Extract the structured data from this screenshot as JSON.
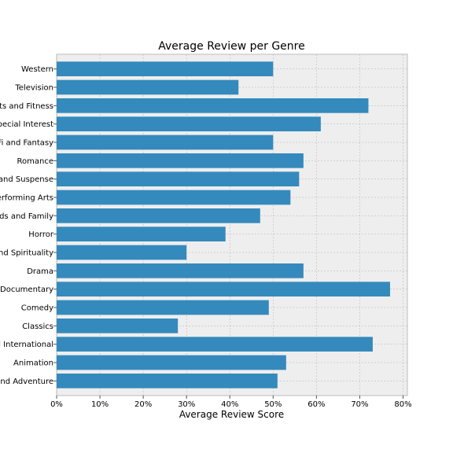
{
  "chart_data": {
    "type": "bar",
    "orientation": "horizontal",
    "title": "Average Review per Genre",
    "xlabel": "Average Review Score",
    "ylabel": "",
    "categories": [
      "Western",
      "Television",
      "Sports and Fitness",
      "Special Interest",
      "Sci-Fi and Fantasy",
      "Romance",
      "Mystery and Suspense",
      "Performing Arts",
      "Kids and Family",
      "Horror",
      "Faith and Spirituality",
      "Drama",
      "Documentary",
      "Comedy",
      "Classics",
      "Art House and International",
      "Animation",
      "Action and Adventure"
    ],
    "values": [
      0.5,
      0.42,
      0.72,
      0.61,
      0.5,
      0.57,
      0.56,
      0.54,
      0.47,
      0.39,
      0.3,
      0.57,
      0.77,
      0.49,
      0.28,
      0.73,
      0.53,
      0.51
    ],
    "xlim": [
      0,
      0.81
    ],
    "xticks": [
      0,
      0.1,
      0.2,
      0.3,
      0.4,
      0.5,
      0.6,
      0.7,
      0.8
    ],
    "xtick_labels": [
      "0%",
      "10%",
      "20%",
      "30%",
      "40%",
      "50%",
      "60%",
      "70%",
      "80%"
    ],
    "grid": true,
    "bar_color": "#348abd",
    "background_color": "#eeeeee"
  }
}
